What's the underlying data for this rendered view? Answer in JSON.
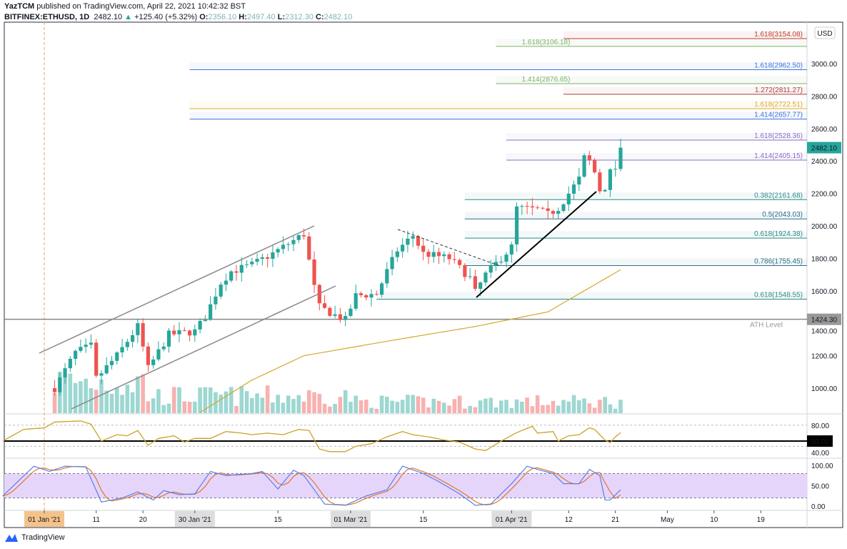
{
  "header": {
    "publisher": "YazTCM",
    "published_text": "published on TradingView.com, April 22, 2021 10:42:32 BST",
    "symbol": "BITFINEX:ETHUSD, 1D",
    "last": "2482.10",
    "change": "+125.40 (+5.32%)",
    "o_label": "O:",
    "o": "2356.10",
    "h_label": "H:",
    "h": "2497.40",
    "l_label": "L:",
    "l": "2312.30",
    "c_label": "C:",
    "c": "2482.10"
  },
  "currency": "USD",
  "price_badge": "2482.10",
  "ath": {
    "value": 1424.3,
    "badge": "1424.30",
    "label": "ATH Level"
  },
  "rsi_badge": "50.00",
  "colors": {
    "up": "#26a69a",
    "down": "#ef5350",
    "ma": "#d4a72c",
    "rsi": "#c9a227",
    "stoch_k": "#5b7fe6",
    "stoch_d": "#e0762f",
    "band": "#e6d5fb"
  },
  "chart_data": {
    "type": "candlestick",
    "price_axis": {
      "ticks": [
        "3000.00",
        "2800.00",
        "2600.00",
        "2400.00",
        "2200.00",
        "2000.00",
        "1800.00",
        "1600.00",
        "1400.00",
        "1200.00",
        "1000.00"
      ],
      "range": [
        850,
        3154
      ]
    },
    "time_axis": [
      {
        "date": "2021-01-01",
        "label": "01 Jan '21",
        "highlight": "orange"
      },
      {
        "date": "2021-01-11",
        "label": "11"
      },
      {
        "date": "2021-01-20",
        "label": "20"
      },
      {
        "date": "2021-01-30",
        "label": "30 Jan '21",
        "highlight": "gray"
      },
      {
        "date": "2021-02-15",
        "label": "15"
      },
      {
        "date": "2021-03-01",
        "label": "01 Mar '21",
        "highlight": "gray"
      },
      {
        "date": "2021-03-15",
        "label": "15"
      },
      {
        "date": "2021-04-01",
        "label": "01 Apr '21",
        "highlight": "gray"
      },
      {
        "date": "2021-04-12",
        "label": "12"
      },
      {
        "date": "2021-04-21",
        "label": "21"
      },
      {
        "date": "2021-05-01",
        "label": "May"
      },
      {
        "date": "2021-05-10",
        "label": "10"
      },
      {
        "date": "2021-05-19",
        "label": "19"
      }
    ],
    "close_keyframes": [
      [
        "2021-01-03",
        1000
      ],
      [
        "2021-01-07",
        1220
      ],
      [
        "2021-01-10",
        1260
      ],
      [
        "2021-01-11",
        1060
      ],
      [
        "2021-01-15",
        1200
      ],
      [
        "2021-01-19",
        1380
      ],
      [
        "2021-01-21",
        1120
      ],
      [
        "2021-01-25",
        1330
      ],
      [
        "2021-01-30",
        1350
      ],
      [
        "2021-02-01",
        1440
      ],
      [
        "2021-02-04",
        1650
      ],
      [
        "2021-02-06",
        1720
      ],
      [
        "2021-02-10",
        1760
      ],
      [
        "2021-02-14",
        1830
      ],
      [
        "2021-02-19",
        1930
      ],
      [
        "2021-02-20",
        1950
      ],
      [
        "2021-02-22",
        1620
      ],
      [
        "2021-02-23",
        1500
      ],
      [
        "2021-02-26",
        1450
      ],
      [
        "2021-02-28",
        1420
      ],
      [
        "2021-03-02",
        1570
      ],
      [
        "2021-03-06",
        1580
      ],
      [
        "2021-03-08",
        1720
      ],
      [
        "2021-03-10",
        1850
      ],
      [
        "2021-03-13",
        1940
      ],
      [
        "2021-03-15",
        1830
      ],
      [
        "2021-03-20",
        1800
      ],
      [
        "2021-03-24",
        1680
      ],
      [
        "2021-03-25",
        1590
      ],
      [
        "2021-03-27",
        1700
      ],
      [
        "2021-04-01",
        1870
      ],
      [
        "2021-04-02",
        2110
      ],
      [
        "2021-04-06",
        2100
      ],
      [
        "2021-04-08",
        2070
      ],
      [
        "2021-04-10",
        2110
      ],
      [
        "2021-04-14",
        2290
      ],
      [
        "2021-04-15",
        2420
      ],
      [
        "2021-04-16",
        2400
      ],
      [
        "2021-04-17",
        2330
      ],
      [
        "2021-04-18",
        2220
      ],
      [
        "2021-04-19",
        2240
      ],
      [
        "2021-04-20",
        2330
      ],
      [
        "2021-04-21",
        2356
      ],
      [
        "2021-04-22",
        2482
      ]
    ],
    "ma_keyframes": [
      [
        "2021-01-31",
        850
      ],
      [
        "2021-02-10",
        1050
      ],
      [
        "2021-02-20",
        1200
      ],
      [
        "2021-03-10",
        1300
      ],
      [
        "2021-03-25",
        1380
      ],
      [
        "2021-04-08",
        1470
      ],
      [
        "2021-04-22",
        1730
      ]
    ],
    "fib_levels": [
      {
        "label": "1.618(3154.08)",
        "value": 3154.08,
        "from": "2021-04-11",
        "color": "#c0392b"
      },
      {
        "label": "1.618(3106.18)",
        "value": 3106.18,
        "from": "2021-03-29",
        "color": "#7cb26a"
      },
      {
        "label": "1.618(2962.50)",
        "value": 2962.5,
        "from": "2021-01-29",
        "color": "#3d74d9"
      },
      {
        "label": "1.414(2876.65)",
        "value": 2876.65,
        "from": "2021-03-29",
        "color": "#7cb26a"
      },
      {
        "label": "1.272(2811.27)",
        "value": 2811.27,
        "from": "2021-04-11",
        "color": "#a8413b"
      },
      {
        "label": "1.618(2722.51)",
        "value": 2722.51,
        "from": "2021-01-29",
        "color": "#e0a92c"
      },
      {
        "label": "1.414(2657.77)",
        "value": 2657.77,
        "from": "2021-01-29",
        "color": "#3d74d9"
      },
      {
        "label": "1.618(2528.36)",
        "value": 2528.36,
        "from": "2021-03-31",
        "color": "#8a6fc9"
      },
      {
        "label": "1.414(2405.15)",
        "value": 2405.15,
        "from": "2021-03-31",
        "color": "#8a6fc9"
      },
      {
        "label": "0.382(2161.68)",
        "value": 2161.68,
        "from": "2021-03-23",
        "color": "#2e8a8a"
      },
      {
        "label": "0.5(2043.03)",
        "value": 2043.03,
        "from": "2021-03-23",
        "color": "#2e6f8a"
      },
      {
        "label": "0.618(1924.38)",
        "value": 1924.38,
        "from": "2021-03-23",
        "color": "#2e8a8a"
      },
      {
        "label": "0.786(1755.45)",
        "value": 1755.45,
        "from": "2021-03-23",
        "color": "#2e6f8a"
      },
      {
        "label": "0.618(1548.55)",
        "value": 1548.55,
        "from": "2021-03-06",
        "color": "#2e8a8a"
      }
    ],
    "rsi": {
      "ticks": [
        "80.00",
        "50.00",
        "40.00"
      ],
      "keyframes": [
        [
          "2020-12-24",
          50
        ],
        [
          "2020-12-28",
          72
        ],
        [
          "2021-01-01",
          75
        ],
        [
          "2021-01-03",
          86
        ],
        [
          "2021-01-08",
          88
        ],
        [
          "2021-01-10",
          82
        ],
        [
          "2021-01-12",
          50
        ],
        [
          "2021-01-15",
          62
        ],
        [
          "2021-01-17",
          60
        ],
        [
          "2021-01-19",
          70
        ],
        [
          "2021-01-21",
          42
        ],
        [
          "2021-01-23",
          55
        ],
        [
          "2021-01-26",
          60
        ],
        [
          "2021-01-28",
          48
        ],
        [
          "2021-01-30",
          55
        ],
        [
          "2021-02-02",
          55
        ],
        [
          "2021-02-05",
          68
        ],
        [
          "2021-02-08",
          65
        ],
        [
          "2021-02-10",
          62
        ],
        [
          "2021-02-13",
          65
        ],
        [
          "2021-02-16",
          62
        ],
        [
          "2021-02-19",
          72
        ],
        [
          "2021-02-21",
          70
        ],
        [
          "2021-02-23",
          35
        ],
        [
          "2021-02-25",
          30
        ],
        [
          "2021-02-28",
          30
        ],
        [
          "2021-03-02",
          40
        ],
        [
          "2021-03-05",
          45
        ],
        [
          "2021-03-08",
          58
        ],
        [
          "2021-03-11",
          68
        ],
        [
          "2021-03-13",
          62
        ],
        [
          "2021-03-16",
          58
        ],
        [
          "2021-03-19",
          52
        ],
        [
          "2021-03-22",
          48
        ],
        [
          "2021-03-25",
          35
        ],
        [
          "2021-03-27",
          32
        ],
        [
          "2021-03-30",
          50
        ],
        [
          "2021-04-02",
          66
        ],
        [
          "2021-04-05",
          78
        ],
        [
          "2021-04-06",
          65
        ],
        [
          "2021-04-09",
          68
        ],
        [
          "2021-04-10",
          50
        ],
        [
          "2021-04-12",
          60
        ],
        [
          "2021-04-14",
          62
        ],
        [
          "2021-04-16",
          75
        ],
        [
          "2021-04-17",
          72
        ],
        [
          "2021-04-19",
          52
        ],
        [
          "2021-04-20",
          47
        ],
        [
          "2021-04-21",
          58
        ],
        [
          "2021-04-22",
          66
        ]
      ]
    },
    "stoch": {
      "ticks": [
        "100.00",
        "50.00",
        "0.00"
      ],
      "k_keyframes": [
        [
          "2020-12-24",
          25
        ],
        [
          "2020-12-30",
          98
        ],
        [
          "2021-01-02",
          85
        ],
        [
          "2021-01-05",
          98
        ],
        [
          "2021-01-09",
          96
        ],
        [
          "2021-01-12",
          10
        ],
        [
          "2021-01-16",
          20
        ],
        [
          "2021-01-19",
          35
        ],
        [
          "2021-01-22",
          15
        ],
        [
          "2021-01-24",
          38
        ],
        [
          "2021-01-27",
          28
        ],
        [
          "2021-01-30",
          30
        ],
        [
          "2021-02-02",
          85
        ],
        [
          "2021-02-05",
          75
        ],
        [
          "2021-02-10",
          80
        ],
        [
          "2021-02-12",
          85
        ],
        [
          "2021-02-15",
          42
        ],
        [
          "2021-02-18",
          88
        ],
        [
          "2021-02-20",
          75
        ],
        [
          "2021-02-24",
          5
        ],
        [
          "2021-02-28",
          2
        ],
        [
          "2021-03-04",
          25
        ],
        [
          "2021-03-08",
          40
        ],
        [
          "2021-03-11",
          98
        ],
        [
          "2021-03-15",
          80
        ],
        [
          "2021-03-18",
          60
        ],
        [
          "2021-03-22",
          30
        ],
        [
          "2021-03-25",
          2
        ],
        [
          "2021-03-28",
          5
        ],
        [
          "2021-04-01",
          55
        ],
        [
          "2021-04-04",
          98
        ],
        [
          "2021-04-06",
          90
        ],
        [
          "2021-04-09",
          80
        ],
        [
          "2021-04-11",
          55
        ],
        [
          "2021-04-14",
          55
        ],
        [
          "2021-04-16",
          90
        ],
        [
          "2021-04-18",
          75
        ],
        [
          "2021-04-19",
          15
        ],
        [
          "2021-04-20",
          15
        ],
        [
          "2021-04-22",
          40
        ]
      ]
    }
  },
  "footer": {
    "brand": "TradingView"
  }
}
